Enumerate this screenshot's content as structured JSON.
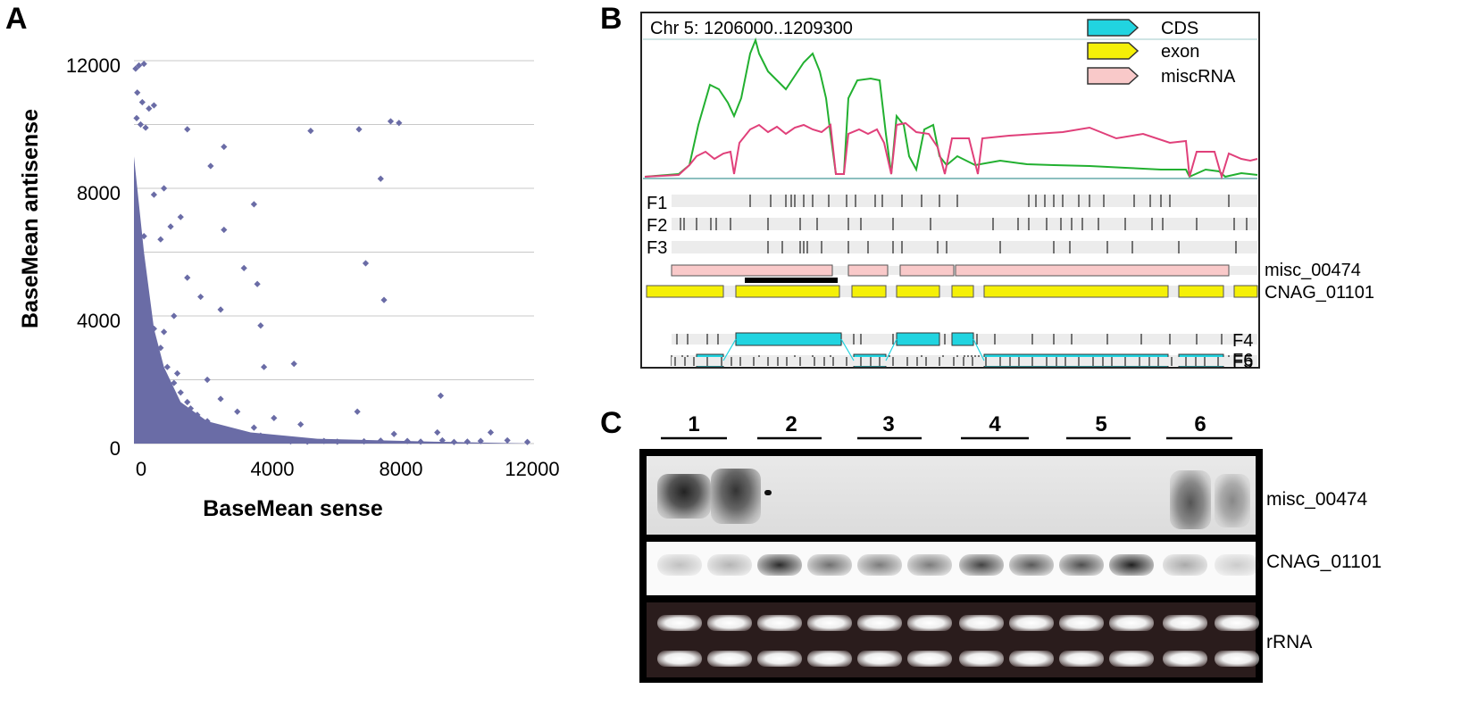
{
  "panels": {
    "a": "A",
    "b": "B",
    "c": "C"
  },
  "scatter": {
    "xlabel": "BaseMean sense",
    "ylabel": "BaseMean antisense",
    "xticks": [
      "0",
      "4000",
      "8000",
      "12000"
    ],
    "yticks": [
      "0",
      "4000",
      "8000",
      "12000"
    ]
  },
  "chart_data": {
    "type": "scatter",
    "title": "",
    "xlabel": "BaseMean sense",
    "ylabel": "BaseMean antisense",
    "xlim": [
      0,
      12000
    ],
    "ylim": [
      0,
      12000
    ],
    "grid": true,
    "marker_color": "#6a6ca6",
    "points": [
      [
        150,
        11850
      ],
      [
        50,
        11750
      ],
      [
        300,
        11900
      ],
      [
        100,
        11000
      ],
      [
        250,
        10700
      ],
      [
        450,
        10500
      ],
      [
        600,
        10600
      ],
      [
        80,
        10200
      ],
      [
        200,
        10000
      ],
      [
        350,
        9900
      ],
      [
        1600,
        9850
      ],
      [
        5300,
        9800
      ],
      [
        6750,
        9850
      ],
      [
        7700,
        10100
      ],
      [
        7950,
        10050
      ],
      [
        2700,
        9300
      ],
      [
        2300,
        8700
      ],
      [
        7400,
        8300
      ],
      [
        900,
        8000
      ],
      [
        600,
        7800
      ],
      [
        1400,
        7100
      ],
      [
        2700,
        6700
      ],
      [
        1100,
        6800
      ],
      [
        300,
        6500
      ],
      [
        800,
        6400
      ],
      [
        3600,
        7500
      ],
      [
        3300,
        5500
      ],
      [
        6950,
        5650
      ],
      [
        1600,
        5200
      ],
      [
        3700,
        5000
      ],
      [
        7500,
        4500
      ],
      [
        2000,
        4600
      ],
      [
        2600,
        4200
      ],
      [
        1200,
        4000
      ],
      [
        3800,
        3700
      ],
      [
        900,
        3500
      ],
      [
        4800,
        2500
      ],
      [
        3900,
        2400
      ],
      [
        1300,
        2200
      ],
      [
        2200,
        2000
      ],
      [
        700,
        1900
      ],
      [
        2600,
        1400
      ],
      [
        9200,
        1500
      ],
      [
        6700,
        1000
      ],
      [
        3100,
        1000
      ],
      [
        1700,
        1100
      ],
      [
        4200,
        800
      ],
      [
        5000,
        600
      ],
      [
        1900,
        700
      ],
      [
        3600,
        500
      ],
      [
        7800,
        300
      ],
      [
        9100,
        350
      ],
      [
        9250,
        100
      ],
      [
        10700,
        350
      ],
      [
        11200,
        100
      ],
      [
        11800,
        50
      ],
      [
        10400,
        80
      ],
      [
        10000,
        60
      ],
      [
        9600,
        50
      ],
      [
        8600,
        60
      ],
      [
        8200,
        80
      ],
      [
        7400,
        90
      ],
      [
        6900,
        70
      ],
      [
        6100,
        60
      ],
      [
        5700,
        80
      ],
      [
        5200,
        60
      ],
      [
        4700,
        70
      ],
      [
        4400,
        150
      ],
      [
        3800,
        250
      ],
      [
        3300,
        300
      ],
      [
        2900,
        400
      ],
      [
        2500,
        500
      ],
      [
        2200,
        700
      ],
      [
        1900,
        900
      ],
      [
        1600,
        1300
      ],
      [
        1400,
        1600
      ],
      [
        1200,
        1900
      ],
      [
        1000,
        2400
      ],
      [
        800,
        3000
      ],
      [
        600,
        3600
      ]
    ]
  },
  "browser": {
    "locus": "Chr 5: 1206000..1209300",
    "legend": [
      {
        "label": "CDS",
        "color": "#21d4e0"
      },
      {
        "label": "exon",
        "color": "#f5f007"
      },
      {
        "label": "miscRNA",
        "color": "#f9c9c9"
      }
    ],
    "coverage_colors": {
      "sense": "#22b030",
      "antisense": "#e0407a"
    },
    "frames_left": [
      "F1",
      "F2",
      "F3"
    ],
    "frames_right": [
      "F4",
      "F5",
      "F6"
    ],
    "track_labels": [
      "misc_00474",
      "CNAG_01101"
    ]
  },
  "northern": {
    "lanes": [
      "1",
      "2",
      "3",
      "4",
      "5",
      "6"
    ],
    "probes": [
      "misc_00474",
      "CNAG_01101",
      "rRNA"
    ]
  }
}
